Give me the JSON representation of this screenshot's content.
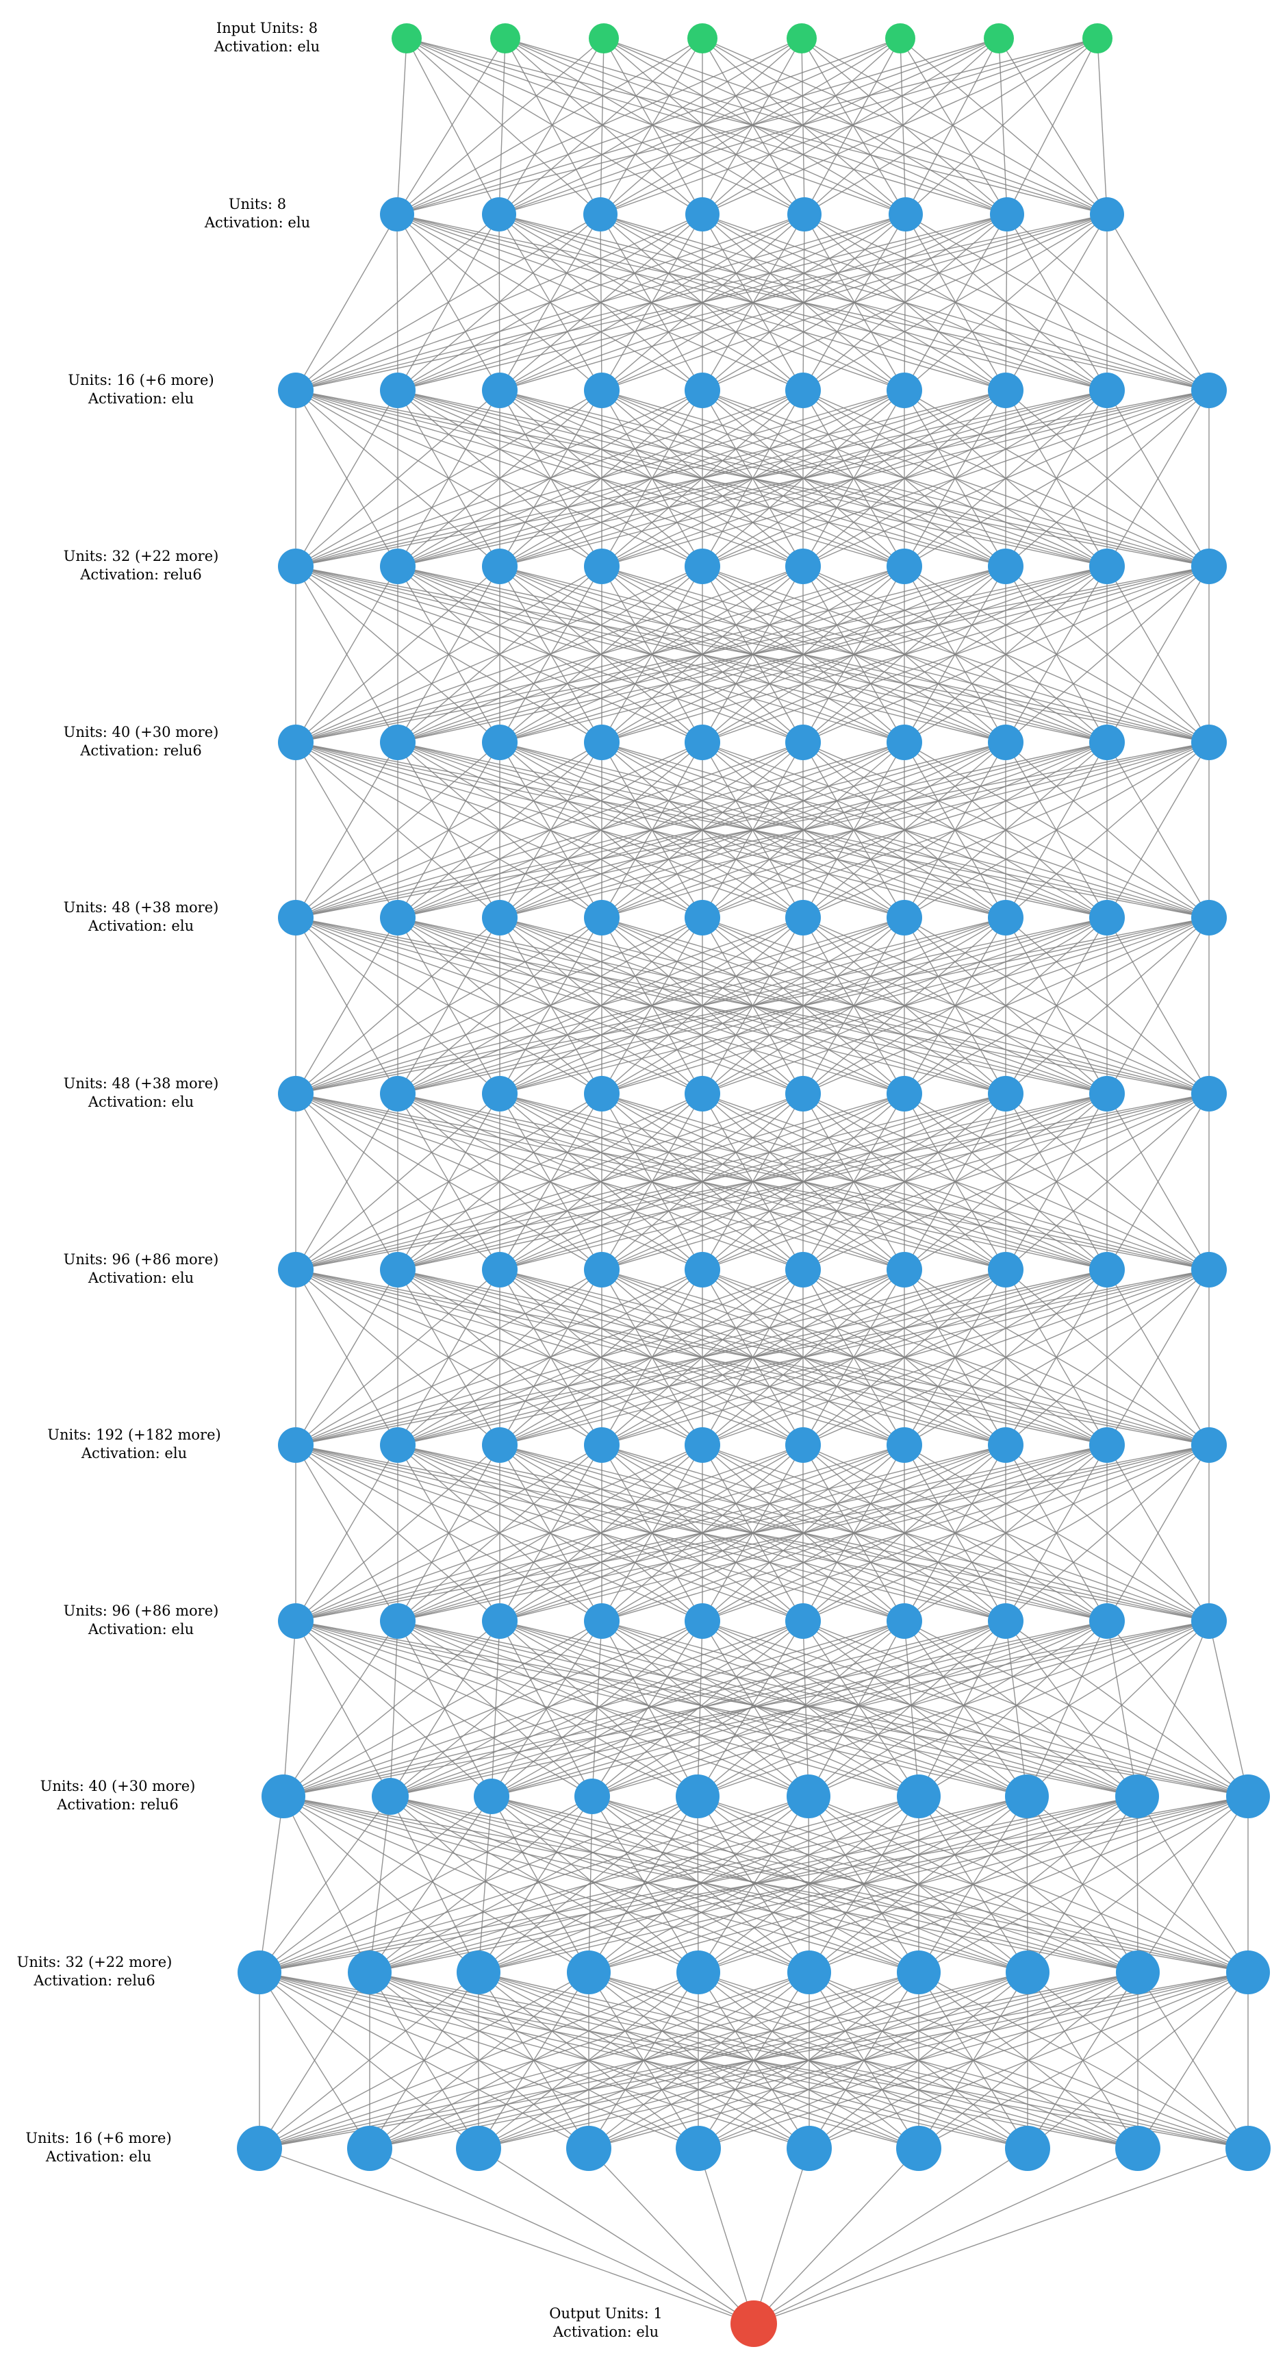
{
  "colors": {
    "input": "#2ecc71",
    "hidden": "#3498db",
    "output": "#e74c3c",
    "edge": "#808080",
    "background": "#ffffff"
  },
  "layers": [
    {
      "units_text": "Input Units: 8",
      "activation_text": "Activation: elu",
      "role": "input",
      "shown_nodes": 8
    },
    {
      "units_text": "Units: 8",
      "activation_text": "Activation: elu",
      "role": "hidden",
      "shown_nodes": 8
    },
    {
      "units_text": "Units: 16 (+6 more)",
      "activation_text": "Activation: elu",
      "role": "hidden",
      "shown_nodes": 10
    },
    {
      "units_text": "Units: 32 (+22 more)",
      "activation_text": "Activation: relu6",
      "role": "hidden",
      "shown_nodes": 10
    },
    {
      "units_text": "Units: 40 (+30 more)",
      "activation_text": "Activation: relu6",
      "role": "hidden",
      "shown_nodes": 10
    },
    {
      "units_text": "Units: 48 (+38 more)",
      "activation_text": "Activation: elu",
      "role": "hidden",
      "shown_nodes": 10
    },
    {
      "units_text": "Units: 48 (+38 more)",
      "activation_text": "Activation: elu",
      "role": "hidden",
      "shown_nodes": 10
    },
    {
      "units_text": "Units: 96 (+86 more)",
      "activation_text": "Activation: elu",
      "role": "hidden",
      "shown_nodes": 10
    },
    {
      "units_text": "Units: 192 (+182 more)",
      "activation_text": "Activation: elu",
      "role": "hidden",
      "shown_nodes": 10
    },
    {
      "units_text": "Units: 96 (+86 more)",
      "activation_text": "Activation: elu",
      "role": "hidden",
      "shown_nodes": 10
    },
    {
      "units_text": "Units: 40 (+30 more)",
      "activation_text": "Activation: relu6",
      "role": "hidden",
      "shown_nodes": 10
    },
    {
      "units_text": "Units: 32 (+22 more)",
      "activation_text": "Activation: relu6",
      "role": "hidden",
      "shown_nodes": 10
    },
    {
      "units_text": "Units: 16 (+6 more)",
      "activation_text": "Activation: elu",
      "role": "hidden",
      "shown_nodes": 10
    },
    {
      "units_text": "Output Units: 1",
      "activation_text": "Activation: elu",
      "role": "output",
      "shown_nodes": 1
    }
  ]
}
